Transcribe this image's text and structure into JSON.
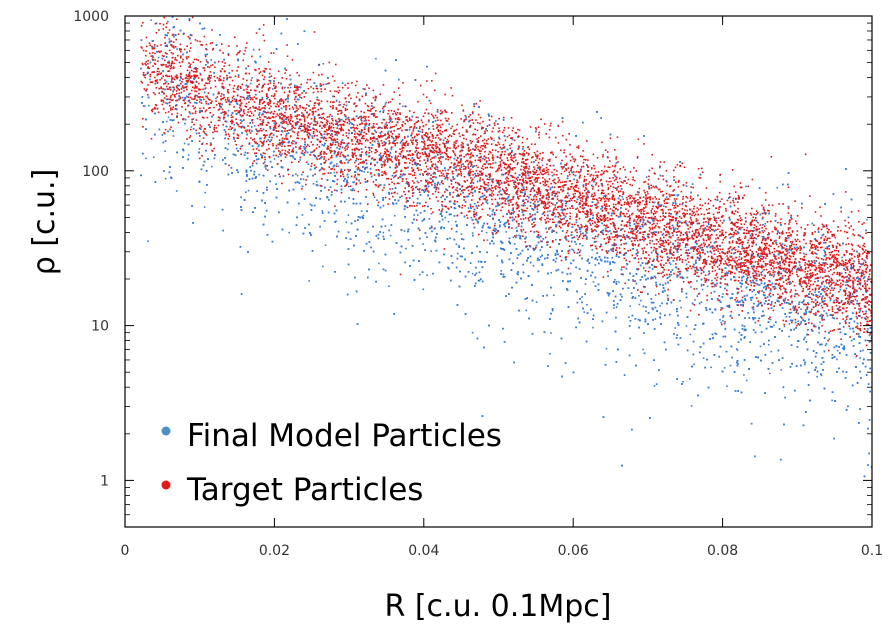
{
  "chart_data": {
    "type": "scatter",
    "title": "",
    "xlabel": "R [c.u. 0.1Mpc]",
    "ylabel": "ρ [c.u.]",
    "xlim": [
      0,
      0.1
    ],
    "ylim": [
      0.5,
      1000
    ],
    "yscale": "log",
    "grid": false,
    "legend_position": "bottom-left",
    "x_ticks": [
      {
        "value": 0,
        "label": "0"
      },
      {
        "value": 0.02,
        "label": "0.02"
      },
      {
        "value": 0.04,
        "label": "0.04"
      },
      {
        "value": 0.06,
        "label": "0.06"
      },
      {
        "value": 0.08,
        "label": "0.08"
      },
      {
        "value": 0.1,
        "label": "0.1"
      }
    ],
    "y_ticks": [
      {
        "value": 1,
        "label": "1"
      },
      {
        "value": 10,
        "label": "10"
      },
      {
        "value": 100,
        "label": "100"
      },
      {
        "value": 1000,
        "label": "1000"
      }
    ],
    "series": [
      {
        "name": "Final Model Particles",
        "color": "#3a7fd5",
        "legend_color": "#4a90c0",
        "trend_x": [
          0.002,
          0.01,
          0.02,
          0.03,
          0.04,
          0.05,
          0.06,
          0.07,
          0.08,
          0.09,
          0.1
        ],
        "trend_y": [
          450,
          280,
          180,
          120,
          85,
          55,
          38,
          28,
          22,
          16,
          12
        ],
        "spread_decades": 0.27,
        "point_count": 9000
      },
      {
        "name": "Target Particles",
        "color": "#e01818",
        "legend_color": "#e01818",
        "trend_x": [
          0.002,
          0.01,
          0.02,
          0.03,
          0.04,
          0.05,
          0.06,
          0.07,
          0.08,
          0.09,
          0.1
        ],
        "trend_y": [
          480,
          330,
          230,
          170,
          130,
          95,
          68,
          48,
          34,
          25,
          18
        ],
        "spread_decades": 0.17,
        "point_count": 6500
      }
    ]
  }
}
